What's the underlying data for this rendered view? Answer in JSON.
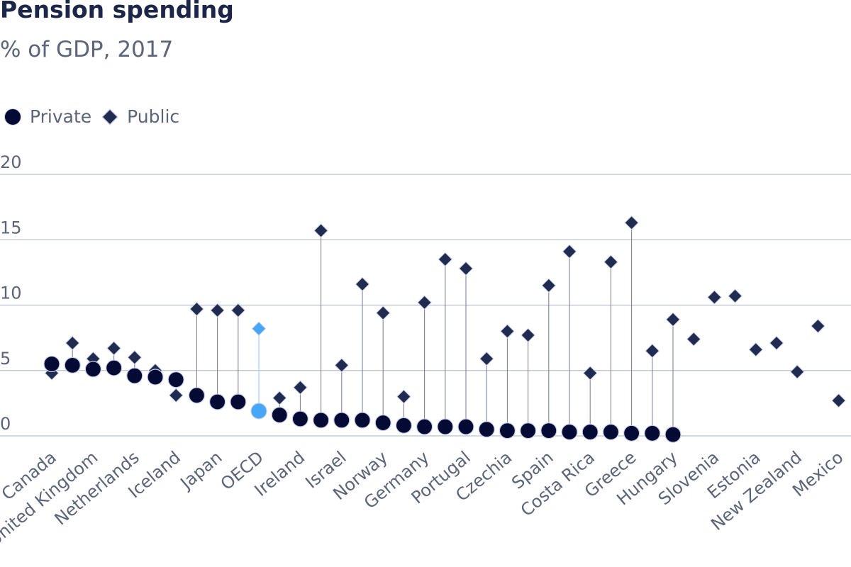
{
  "chart_data": {
    "type": "scatter",
    "title": "Pension spending",
    "subtitle": "% of GDP, 2017",
    "ylim": [
      0,
      20
    ],
    "y_ticks": [
      0,
      5,
      10,
      15,
      20
    ],
    "grid": true,
    "legend_position": "top-left",
    "legend": [
      {
        "name": "Private",
        "marker": "circle"
      },
      {
        "name": "Public",
        "marker": "diamond"
      }
    ],
    "highlight": "OECD",
    "colors": {
      "private": "#050a35",
      "public": "#212a4f",
      "highlight": "#48a6f7",
      "grid": "#b8c0cc",
      "stem": "#6a6f85",
      "highlight_stem": "#a9d1f7",
      "marker_outline": "#c6d0e8"
    },
    "categories": [
      "Canada",
      "United Kingdom",
      "Netherlands",
      "Iceland",
      "Japan",
      "OECD",
      "Ireland",
      "Israel",
      "Norway",
      "Germany",
      "Portugal",
      "Czechia",
      "Spain",
      "Costa Rica",
      "Greece",
      "Hungary",
      "Slovenia",
      "Estonia",
      "New Zealand",
      "Mexico"
    ],
    "points": [
      {
        "private": 5.5,
        "public": 4.8
      },
      {
        "private": 5.4,
        "public": 7.1
      },
      {
        "private": 5.1,
        "public": 5.9
      },
      {
        "private": 5.2,
        "public": 6.7
      },
      {
        "private": 4.6,
        "public": 6.0
      },
      {
        "private": 4.5,
        "public": 5.0
      },
      {
        "private": 4.3,
        "public": 3.1
      },
      {
        "private": 3.1,
        "public": 9.7
      },
      {
        "private": 2.6,
        "public": 9.6
      },
      {
        "private": 2.6,
        "public": 9.6
      },
      {
        "private": 1.9,
        "public": 8.2
      },
      {
        "private": 1.6,
        "public": 2.9
      },
      {
        "private": 1.3,
        "public": 3.7
      },
      {
        "private": 1.2,
        "public": 15.7
      },
      {
        "private": 1.2,
        "public": 5.4
      },
      {
        "private": 1.2,
        "public": 11.6
      },
      {
        "private": 1.0,
        "public": 9.4
      },
      {
        "private": 0.8,
        "public": 3.0
      },
      {
        "private": 0.7,
        "public": 10.2
      },
      {
        "private": 0.7,
        "public": 13.5
      },
      {
        "private": 0.7,
        "public": 12.8
      },
      {
        "private": 0.5,
        "public": 5.9
      },
      {
        "private": 0.4,
        "public": 8.0
      },
      {
        "private": 0.4,
        "public": 7.7
      },
      {
        "private": 0.4,
        "public": 11.5
      },
      {
        "private": 0.3,
        "public": 14.1
      },
      {
        "private": 0.3,
        "public": 4.8
      },
      {
        "private": 0.3,
        "public": 13.3
      },
      {
        "private": 0.2,
        "public": 16.3
      },
      {
        "private": 0.2,
        "public": 6.5
      },
      {
        "private": 0.1,
        "public": 8.9
      },
      {
        "private": null,
        "public": 7.4
      },
      {
        "private": null,
        "public": 10.6
      },
      {
        "private": null,
        "public": 10.7
      },
      {
        "private": null,
        "public": 6.6
      },
      {
        "private": null,
        "public": 7.1
      },
      {
        "private": null,
        "public": 4.9
      },
      {
        "private": null,
        "public": 8.4
      },
      {
        "private": null,
        "public": 2.7
      }
    ]
  }
}
